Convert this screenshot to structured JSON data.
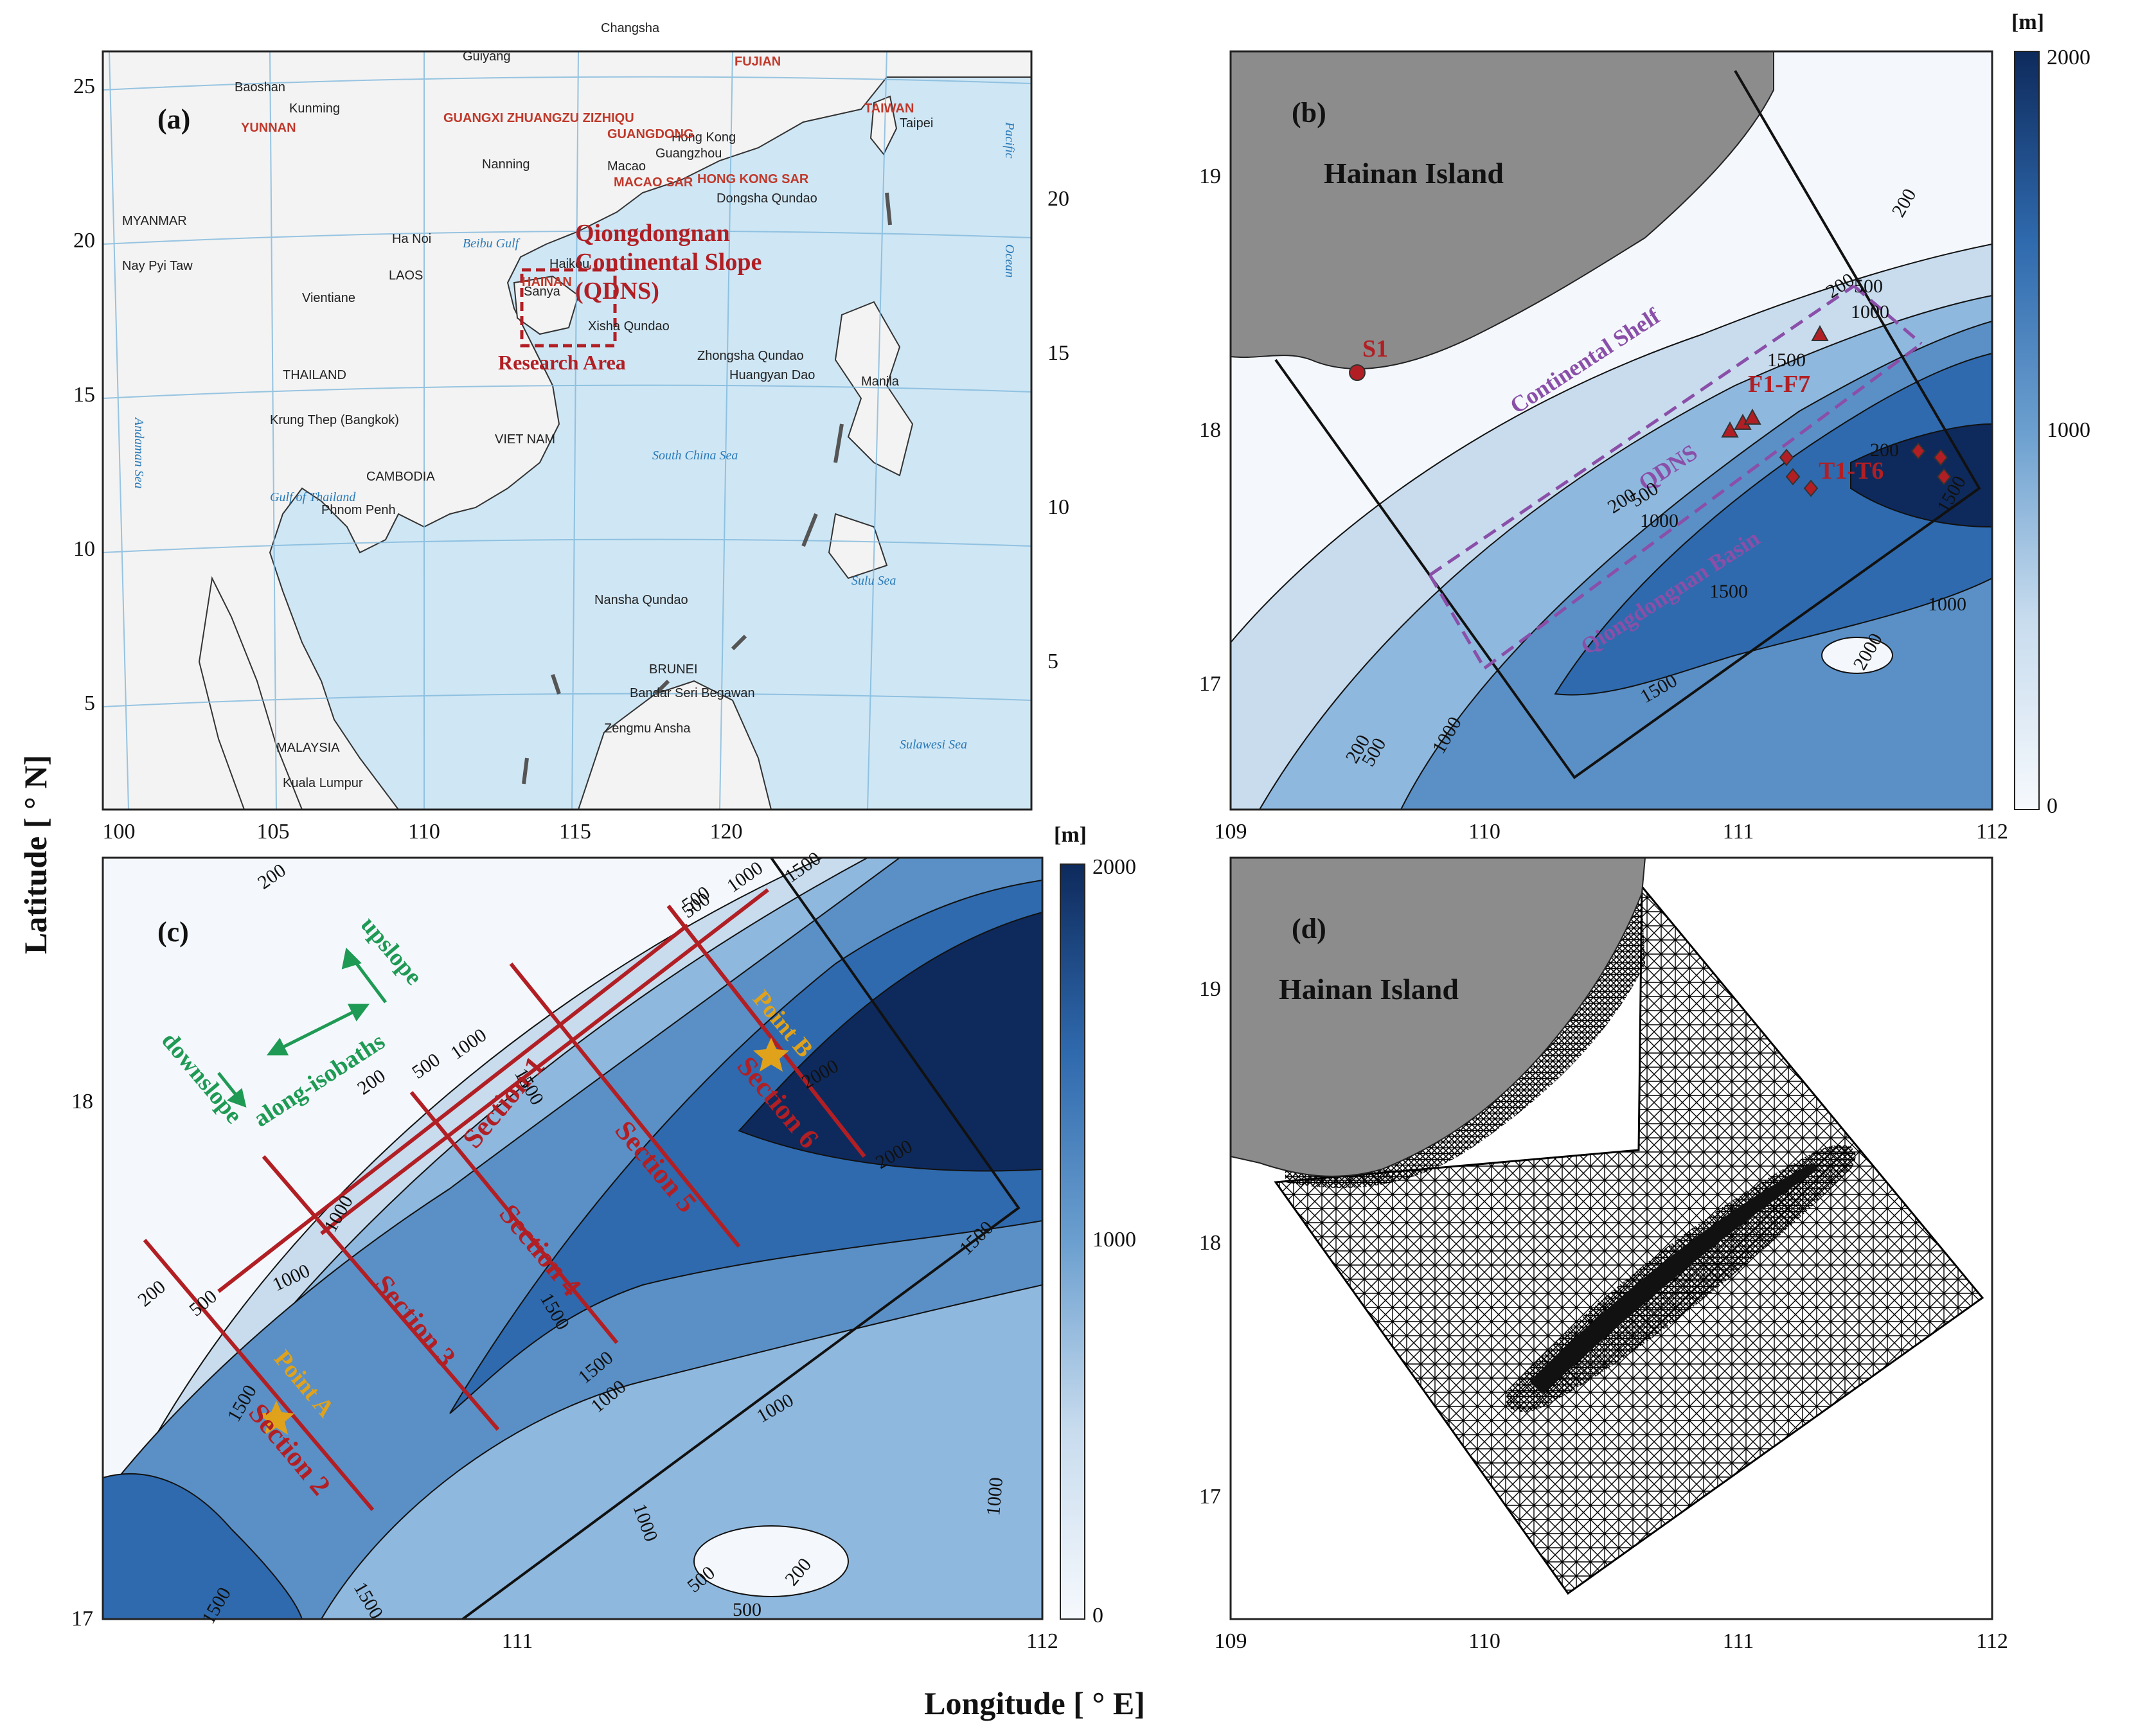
{
  "axis_labels": {
    "y": "Latitude [ ° N]",
    "x": "Longitude [ ° E]"
  },
  "panel_a": {
    "tag": "(a)",
    "lon_ticks": [
      "100",
      "105",
      "110",
      "115",
      "120"
    ],
    "lat_ticks_left": [
      "25",
      "20",
      "15",
      "10",
      "5"
    ],
    "lat_ticks_right": [
      "20",
      "15",
      "10",
      "5"
    ],
    "places": [
      "Guiyang",
      "Changsha",
      "Baoshan",
      "Kunming",
      "Nanning",
      "Guangzhou",
      "Hong Kong",
      "Macao",
      "Ha Noi",
      "Vientiane",
      "Nay Pyi Taw",
      "THAILAND",
      "CAMBODIA",
      "Krung Thep (Bangkok)",
      "Phnom Penh",
      "MYANMAR",
      "MALAYSIA",
      "Kuala Lumpur",
      "BRUNEI",
      "Bandar Seri Begawan",
      "Manila",
      "Taipei",
      "Haikou",
      "Sanya",
      "Xisha Qundao",
      "Zhongsha Qundao",
      "Dongsha Qundao",
      "Nansha Qundao",
      "Huangyan Dao",
      "Zengmu Ansha",
      "VIET NAM",
      "LAOS"
    ],
    "provinces": [
      "FUJIAN",
      "YUNNAN",
      "GUANGXI ZHUANGZU ZIZHIQU",
      "GUANGDONG",
      "TAIWAN",
      "HAINAN",
      "HONG KONG SAR",
      "MACAO SAR"
    ],
    "seas": [
      "Pacific",
      "Ocean",
      "South China Sea",
      "Beibu Gulf",
      "Gulf of Thailand",
      "Andaman Sea",
      "Sulu Sea",
      "Sulawesi Sea"
    ],
    "title_line1": "Qiongdongnan",
    "title_line2": "Continental Slope",
    "title_line3": "(QDNS)",
    "research_area": "Research Area"
  },
  "panel_b": {
    "tag": "(b)",
    "island": "Hainan Island",
    "lon_ticks": [
      "109",
      "110",
      "111",
      "112"
    ],
    "lat_ticks": [
      "19",
      "18",
      "17"
    ],
    "colorbar": {
      "unit": "[m]",
      "max": "2000",
      "mid": "1000",
      "min": "0"
    },
    "station_s1": "S1",
    "station_f": "F1-F7",
    "station_t": "T1-T6",
    "continental_shelf": "Continental Shelf",
    "qdns": "QDNS",
    "basin": "Qiongdongnan Basin",
    "contours": [
      "200",
      "500",
      "1000",
      "1500",
      "200",
      "500",
      "1000",
      "1500",
      "200",
      "1000",
      "1500",
      "200",
      "500",
      "1000",
      "200",
      "1500",
      "2000"
    ]
  },
  "panel_c": {
    "tag": "(c)",
    "lon_ticks": [
      "111",
      "112"
    ],
    "lat_ticks": [
      "18",
      "17"
    ],
    "colorbar": {
      "unit": "[m]",
      "max": "2000",
      "mid": "1000",
      "min": "0"
    },
    "sections": [
      "Section 1",
      "Section 2",
      "Section 3",
      "Section 4",
      "Section 5",
      "Section 6"
    ],
    "point_a": "Point A",
    "point_b": "Point B",
    "arrows": {
      "upslope": "upslope",
      "downslope": "downslope",
      "along": "along-isobaths"
    },
    "contours": [
      "200",
      "500",
      "1000",
      "1500",
      "200",
      "500",
      "1000",
      "1500",
      "2000",
      "1000",
      "1500",
      "500",
      "1000",
      "1500",
      "200",
      "500",
      "1000",
      "1500",
      "2000",
      "1500",
      "1000",
      "1000",
      "200",
      "500",
      "500",
      "1500",
      "1000",
      "1500"
    ]
  },
  "panel_d": {
    "tag": "(d)",
    "island": "Hainan Island",
    "lon_ticks": [
      "109",
      "110",
      "111",
      "112"
    ],
    "lat_ticks": [
      "19",
      "18",
      "17"
    ]
  },
  "colors": {
    "land_gray": "#8c8c8c",
    "sea_light": "#cfe6f4",
    "deep": "#0e2a5c",
    "section_red": "#b11f24",
    "purple": "#8a4fa8",
    "green": "#1f9a55",
    "gold": "#e0a21a"
  }
}
